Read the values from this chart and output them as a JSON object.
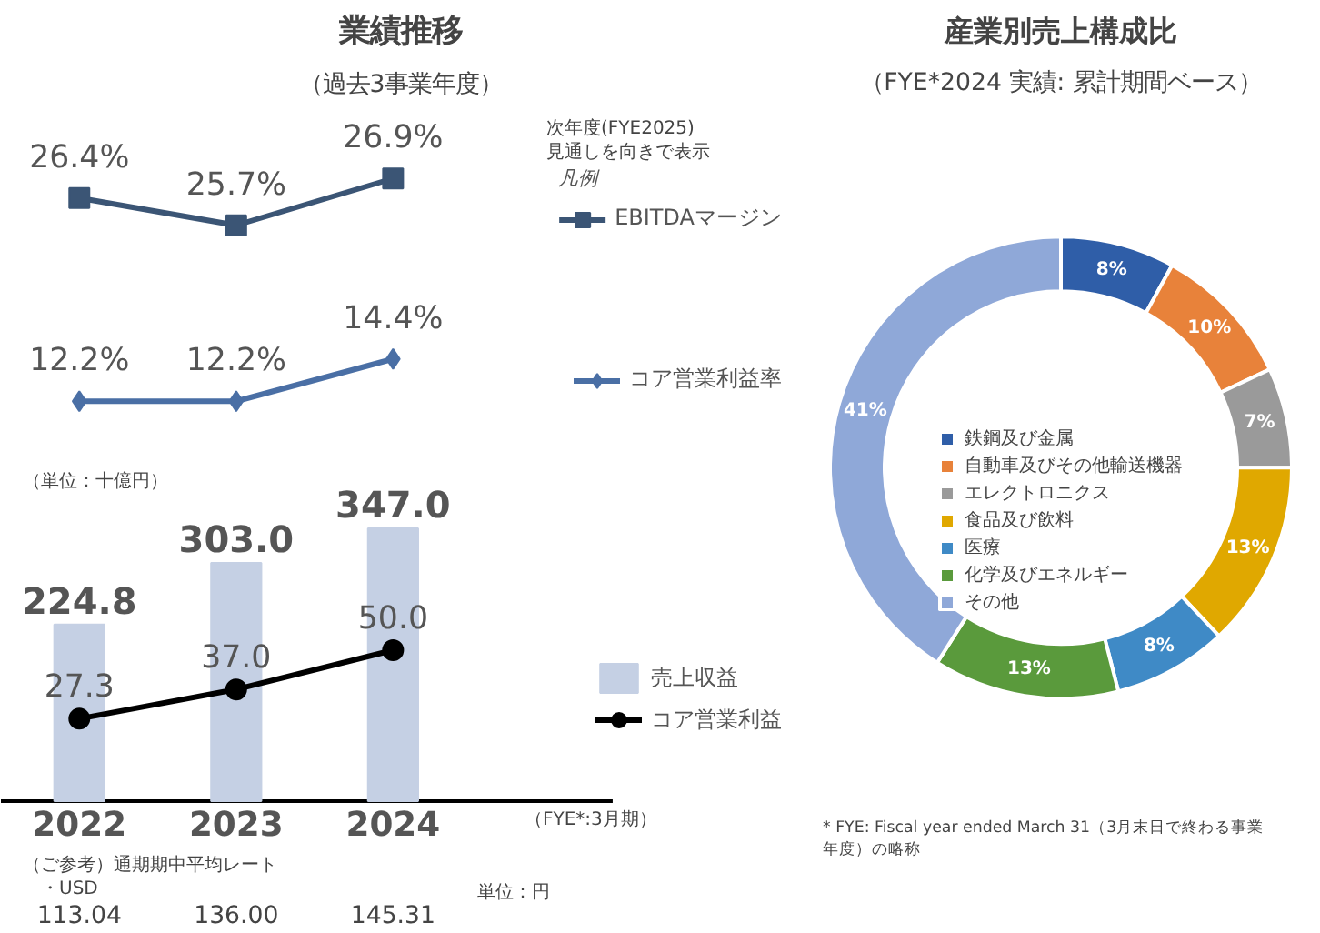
{
  "chart_data": [
    {
      "type": "line",
      "title": "業績推移",
      "subtitle": "（過去3事業年度）",
      "categories": [
        "2022",
        "2023",
        "2024"
      ],
      "marker": "square",
      "legend": "right",
      "legend_title": "凡例",
      "tick_labels": false,
      "series": [
        {
          "name": "EBITDAマージン",
          "color": "#3b5575",
          "values": [
            26.4,
            25.7,
            26.9
          ],
          "value_labels": [
            "26.4%",
            "25.7%",
            "26.9%"
          ]
        }
      ],
      "annotations": [
        "次年度(FYE2025)\n見通しを向きで表示"
      ]
    },
    {
      "type": "line",
      "categories": [
        "2022",
        "2023",
        "2024"
      ],
      "marker": "diamond",
      "legend": "right",
      "tick_labels": false,
      "series": [
        {
          "name": "コア営業利益率",
          "color": "#4a6fa5",
          "values": [
            12.2,
            12.2,
            14.4
          ],
          "value_labels": [
            "12.2%",
            "12.2%",
            "14.4%"
          ]
        }
      ]
    },
    {
      "type": "bar",
      "categories": [
        "2022",
        "2023",
        "2024"
      ],
      "marker": "circle",
      "legend": "right",
      "tick_labels": "x",
      "series": [
        {
          "name": "売上収益",
          "color": "#c5d0e4",
          "values": [
            224.8,
            303.0,
            347.0
          ],
          "value_labels": [
            "224.8",
            "303.0",
            "347.0"
          ]
        },
        {
          "name": "コア営業利益",
          "type": "line",
          "axis": "y2",
          "color": "#000000",
          "values": [
            27.3,
            37.0,
            50.0
          ],
          "value_labels": [
            "27.3",
            "37.0",
            "50.0"
          ]
        }
      ],
      "annotations": [
        "（単位：十億円）",
        "（FYE*:3月期）",
        "（ご参考）通期期中平均レート",
        "・USD",
        "単位：円",
        "113.04",
        "136.00",
        "145.31"
      ]
    },
    {
      "type": "donut",
      "title": "産業別売上構成比",
      "subtitle": "（FYE*2024 実績: 累計期間ベース）",
      "legend": "center",
      "categories": [
        "鉄鋼及び金属",
        "自動車及びその他輸送機器",
        "エレクトロニクス",
        "食品及び飲料",
        "医療",
        "化学及びエネルギー",
        "その他"
      ],
      "values": [
        8,
        10,
        7,
        13,
        8,
        13,
        41
      ],
      "colors": [
        "#2f5ea8",
        "#e8823a",
        "#9a9a9a",
        "#e0a800",
        "#3f8ac6",
        "#5a9a3c",
        "#8fa8d8"
      ],
      "value_labels": [
        "8%",
        "10%",
        "7%",
        "13%",
        "8%",
        "13%",
        "41%"
      ],
      "annotations": [
        "* FYE: Fiscal year ended March 31（3月末日で終わる事業年度）の略称"
      ]
    }
  ]
}
